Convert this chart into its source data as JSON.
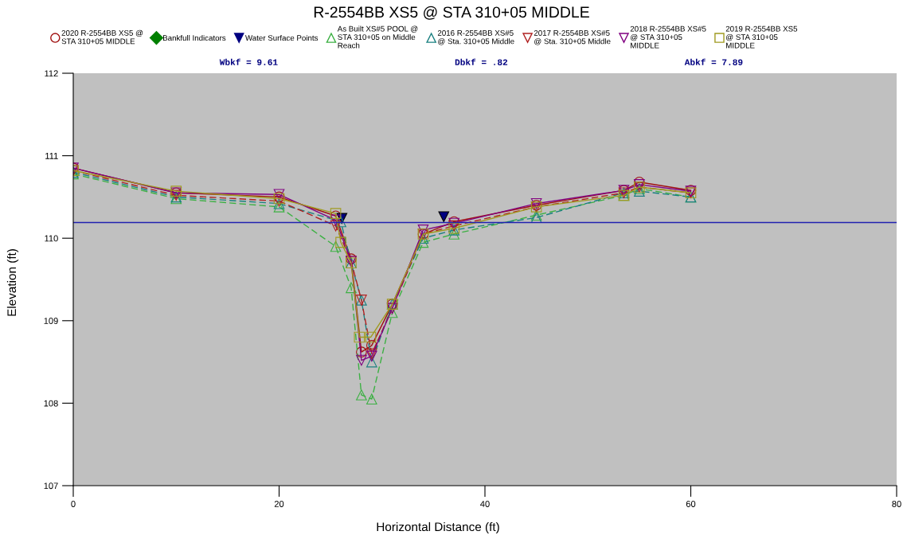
{
  "chart_data": {
    "type": "line",
    "title": "R-2554BB XS5 @ STA 310+05 MIDDLE",
    "xlabel": "Horizontal Distance (ft)",
    "ylabel": "Elevation (ft)",
    "xlim": [
      0,
      80
    ],
    "ylim": [
      107,
      112
    ],
    "xticks": [
      0,
      20,
      40,
      60,
      80
    ],
    "yticks": [
      107,
      108,
      109,
      110,
      111,
      112
    ],
    "grid": false,
    "legend": "top",
    "series": [
      {
        "name": "2020 R-2554BB XS5 @\nSTA 310+05 MIDDLE",
        "color": "#a01010",
        "marker": "circle",
        "line_style": "solid",
        "x": [
          0,
          10,
          20,
          25.5,
          27,
          28,
          29,
          31,
          34,
          37,
          45,
          53.5,
          55,
          60
        ],
        "values": [
          110.85,
          110.55,
          110.5,
          110.27,
          109.75,
          108.62,
          108.7,
          109.2,
          110.05,
          110.2,
          110.4,
          110.58,
          110.68,
          110.58
        ]
      },
      {
        "name": "Bankfull Indicators",
        "type": "scatter",
        "color": "#008000",
        "marker": "diamond",
        "values": [
          null
        ]
      },
      {
        "name": "Water Surface Points",
        "type": "scatter",
        "color": "#000080",
        "marker": "triangle_down",
        "x": [
          26.1,
          36
        ],
        "values": [
          110.24,
          110.26
        ]
      },
      {
        "name": "As Built XS#5 POOL @\nSTA 310+05 on Middle\nReach",
        "color": "#3cb043",
        "marker": "triangle",
        "line_style": "dashed",
        "x": [
          0,
          10,
          20,
          25.5,
          27,
          28,
          29,
          31,
          34,
          37,
          45,
          53.5,
          55,
          60
        ],
        "values": [
          110.78,
          110.48,
          110.38,
          109.9,
          109.4,
          108.1,
          108.05,
          109.1,
          109.95,
          110.05,
          110.28,
          110.52,
          110.6,
          110.5
        ]
      },
      {
        "name": "2016 R-2554BB XS#5\n@ Sta. 310+05 Middle",
        "color": "#1a8080",
        "marker": "triangle",
        "line_style": "dashed",
        "x": [
          0,
          10,
          20,
          26,
          27,
          28,
          29,
          31,
          34,
          37,
          45,
          53.5,
          55,
          60
        ],
        "values": [
          110.8,
          110.5,
          110.42,
          110.2,
          109.7,
          109.25,
          108.5,
          109.2,
          110.0,
          110.1,
          110.25,
          110.55,
          110.57,
          110.5
        ]
      },
      {
        "name": "2017 R-2554BB XS#5\n@ Sta. 310+05 Middle",
        "color": "#b02020",
        "marker": "triangle_down",
        "line_style": "dashed",
        "x": [
          0,
          10,
          20,
          25.5,
          27,
          28,
          29,
          31,
          34,
          37,
          45,
          53.5,
          55,
          60
        ],
        "values": [
          110.82,
          110.52,
          110.45,
          110.15,
          109.72,
          109.25,
          108.6,
          109.15,
          110.05,
          110.15,
          110.38,
          110.55,
          110.62,
          110.55
        ]
      },
      {
        "name": "2018 R-2554BB XS#5\n@ STA 310+05\nMIDDLE",
        "color": "#800080",
        "marker": "triangle_down",
        "line_style": "solid",
        "x": [
          0,
          10,
          20,
          25.5,
          27,
          28,
          29,
          31,
          34,
          37,
          45,
          53.5,
          55,
          60
        ],
        "values": [
          110.85,
          110.55,
          110.53,
          110.22,
          109.72,
          108.52,
          108.57,
          109.15,
          110.1,
          110.18,
          110.42,
          110.58,
          110.65,
          110.57
        ]
      },
      {
        "name": "2019 R-2554BB XS5\n@ STA 310+05\nMIDDLE",
        "color": "#a09a20",
        "marker": "square",
        "line_style": "solid",
        "x": [
          0,
          10,
          20,
          25.5,
          26,
          27,
          27.8,
          28.9,
          31,
          34,
          37,
          45,
          53.5,
          55,
          60
        ],
        "values": [
          110.82,
          110.57,
          110.48,
          110.3,
          109.95,
          109.7,
          108.8,
          108.8,
          109.2,
          110.05,
          110.12,
          110.38,
          110.52,
          110.62,
          110.55
        ]
      }
    ],
    "ref_lines": [
      {
        "axis": "y",
        "value": 110.19,
        "color": "#2020b0",
        "line_style": "solid"
      }
    ],
    "annotations": [
      "Wbkf = 9.61",
      "Dbkf = .82",
      "Abkf = 7.89"
    ]
  }
}
